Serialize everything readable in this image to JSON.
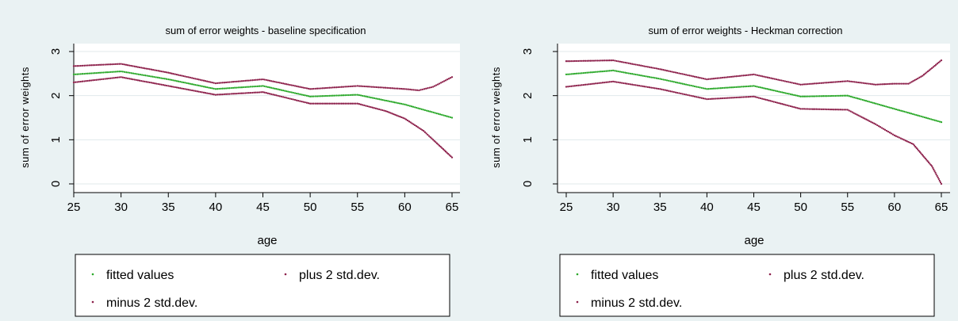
{
  "colors": {
    "background": "#eaf2f3",
    "plot_background": "#ffffff",
    "gridline": "#e1eaeb",
    "fitted": "#2aa829",
    "bands": "#8c1f4a",
    "text": "#000000"
  },
  "chart_data": [
    {
      "type": "scatter",
      "title": "sum of error weights - baseline specification",
      "xlabel": "age",
      "ylabel": "sum of error weights",
      "xlim": [
        25,
        65
      ],
      "ylim": [
        0,
        3
      ],
      "xticks": [
        "25",
        "30",
        "35",
        "40",
        "45",
        "50",
        "55",
        "60",
        "65"
      ],
      "yticks": [
        "0",
        "1",
        "2",
        "3"
      ],
      "grid": "horizontal",
      "legend": {
        "position": "bottom",
        "entries": [
          "fitted values",
          "plus 2 std.dev.",
          "minus 2 std.dev."
        ]
      },
      "series": [
        {
          "name": "fitted values",
          "color": "#2aa829",
          "x": [
            25,
            30,
            35,
            40,
            45,
            50,
            55,
            60,
            65
          ],
          "y": [
            2.48,
            2.55,
            2.37,
            2.15,
            2.22,
            1.98,
            2.02,
            1.8,
            1.5
          ]
        },
        {
          "name": "plus 2 std.dev.",
          "color": "#8c1f4a",
          "x": [
            25,
            30,
            35,
            40,
            45,
            50,
            55,
            60,
            61.5,
            63,
            65
          ],
          "y": [
            2.67,
            2.72,
            2.52,
            2.28,
            2.37,
            2.15,
            2.22,
            2.15,
            2.12,
            2.2,
            2.42
          ]
        },
        {
          "name": "minus 2 std.dev.",
          "color": "#8c1f4a",
          "x": [
            25,
            30,
            35,
            40,
            45,
            50,
            55,
            58,
            60,
            62,
            63,
            65
          ],
          "y": [
            2.3,
            2.42,
            2.22,
            2.02,
            2.08,
            1.82,
            1.82,
            1.65,
            1.48,
            1.2,
            1.0,
            0.6
          ]
        }
      ]
    },
    {
      "type": "scatter",
      "title": "sum of error weights - Heckman correction",
      "xlabel": "age",
      "ylabel": "sum of error weights",
      "xlim": [
        25,
        65
      ],
      "ylim": [
        0,
        3
      ],
      "xticks": [
        "25",
        "30",
        "35",
        "40",
        "45",
        "50",
        "55",
        "60",
        "65"
      ],
      "yticks": [
        "0",
        "1",
        "2",
        "3"
      ],
      "grid": "horizontal",
      "legend": {
        "position": "bottom",
        "entries": [
          "fitted values",
          "plus 2 std.dev.",
          "minus 2 std.dev."
        ]
      },
      "series": [
        {
          "name": "fitted values",
          "color": "#2aa829",
          "x": [
            25,
            30,
            35,
            40,
            45,
            50,
            55,
            60,
            65
          ],
          "y": [
            2.48,
            2.57,
            2.38,
            2.15,
            2.22,
            1.98,
            2.0,
            1.7,
            1.4
          ]
        },
        {
          "name": "plus 2 std.dev.",
          "color": "#8c1f4a",
          "x": [
            25,
            30,
            35,
            40,
            45,
            50,
            55,
            58,
            60,
            61.5,
            63,
            65
          ],
          "y": [
            2.78,
            2.8,
            2.6,
            2.37,
            2.48,
            2.25,
            2.33,
            2.25,
            2.27,
            2.27,
            2.45,
            2.8
          ]
        },
        {
          "name": "minus 2 std.dev.",
          "color": "#8c1f4a",
          "x": [
            25,
            30,
            35,
            40,
            45,
            50,
            55,
            58,
            60,
            62,
            64,
            65
          ],
          "y": [
            2.2,
            2.32,
            2.15,
            1.92,
            1.98,
            1.7,
            1.68,
            1.35,
            1.1,
            0.9,
            0.4,
            0.0
          ]
        }
      ]
    }
  ]
}
